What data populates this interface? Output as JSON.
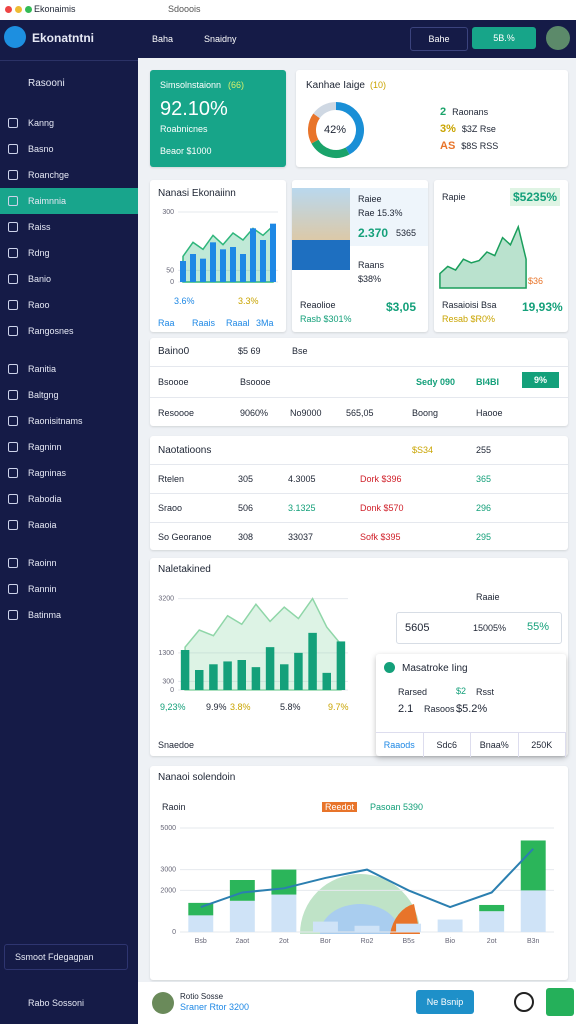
{
  "window": {
    "app": "Ekonaimis",
    "tab": "Sdooois"
  },
  "sidebar": {
    "brand": "Ekonatntni",
    "section": "Rasooni",
    "groups": [
      [
        "Kanng",
        "Basno",
        "Roanchge",
        "Raimnnia",
        "Raiss",
        "Rdng",
        "Banio",
        "Raoo",
        "Rangosnes"
      ],
      [
        "Ranitia",
        "Baltgng",
        "Raonisitnams",
        "Ragninn",
        "Ragninas",
        "Rabodia",
        "Raaoia"
      ],
      [
        "Raoinn",
        "Rannin",
        "Batinma"
      ]
    ],
    "active": [
      0,
      3
    ],
    "footer": "Ssmoot Fdegagpan",
    "user": "Rabo Sossoni"
  },
  "header": {
    "nav": [
      "Baha",
      "Snaidny"
    ],
    "search": "Bahe",
    "badge": "5B.%"
  },
  "kpi": {
    "title": "Simsolnstaionn",
    "tag": "(66)",
    "value": "92.10%",
    "line1": "Roabnicnes",
    "line2": "Beaor $1000"
  },
  "donut": {
    "title": "Kanhae Iaige",
    "tag": "(10)",
    "center": "42%",
    "segments": [
      {
        "value": 42,
        "color": "#1a8fd6"
      },
      {
        "value": 25,
        "color": "#1aa36a"
      },
      {
        "value": 18,
        "color": "#e8742a"
      },
      {
        "value": 15,
        "color": "#cfd8e3"
      }
    ],
    "legend": [
      [
        "2",
        "Raonans"
      ],
      [
        "3%",
        "$3Z Rse"
      ],
      [
        "AS",
        "$8S RSS"
      ]
    ]
  },
  "card_a": {
    "title": "Nanasi Ekonaiinn",
    "footer": [
      "Raa",
      "Raais",
      "Raaal",
      "3Ma"
    ],
    "stats": [
      "3.6%",
      "3.3%"
    ],
    "chart": {
      "ylim": [
        0,
        300
      ],
      "yticks": [
        0,
        50,
        300
      ],
      "series": [
        {
          "type": "area",
          "color": "#2fb67c",
          "values": [
            110,
            170,
            140,
            200,
            160,
            210,
            180,
            230,
            200,
            240
          ]
        },
        {
          "type": "bar",
          "color": "#1e88e5",
          "values": [
            90,
            120,
            100,
            170,
            140,
            150,
            120,
            230,
            180,
            250
          ]
        }
      ]
    }
  },
  "card_b": {
    "label1": "Raiee",
    "label2": "Rae 15.3%",
    "value": "2.370",
    "tag": "5365",
    "label3": "Raans",
    "label4": "$38%",
    "foot1": "Reaolioe",
    "foot2": "Rasb $301%",
    "amount": "$3,05"
  },
  "card_c": {
    "label": "Rapie",
    "value": "$5235%",
    "badge": "$36",
    "foot1": "Rasaioisi Bsa",
    "foot2": "Resab $R0%",
    "amount": "19,93%",
    "chart": {
      "ylim": [
        0,
        100
      ],
      "series": [
        {
          "type": "area",
          "color": "#1a9e5c",
          "values": [
            20,
            30,
            25,
            40,
            35,
            38,
            50,
            45,
            70,
            60,
            85,
            40
          ]
        }
      ]
    }
  },
  "table1": {
    "title": "Baino0",
    "meta": [
      "$5 69",
      "Bse"
    ],
    "rows": [
      [
        "Bsoooe",
        "Bsoooe",
        "",
        "Sedy 090",
        "BI4BI",
        "9%"
      ],
      [
        "Resoooe",
        "9060%",
        "No9000",
        "565,05",
        "Boong",
        "Haooe"
      ]
    ]
  },
  "table2": {
    "title": "Naotatioons",
    "headers": [
      "$S34",
      "255"
    ],
    "rows": [
      [
        "Rtelen",
        "305",
        "4.3005",
        "Dork $396",
        "365"
      ],
      [
        "Sraoo",
        "506",
        "3.1325",
        "Donk $570",
        "296"
      ],
      [
        "So Georanoe",
        "308",
        "33037",
        "Sofk $395",
        "295"
      ]
    ]
  },
  "mid": {
    "title": "Naletakined",
    "stats": [
      "9,23%",
      "9.9%",
      "3.8%",
      "5.8%",
      "9.7%"
    ],
    "corner": "Raaie",
    "box": [
      "5605",
      "15005%",
      "55%"
    ],
    "pop": {
      "title": "Masatroke Iing",
      "rows": [
        [
          "Rarsed",
          "$2",
          "Rsst"
        ],
        [
          "2.1",
          "Rasoos",
          "$5.2%"
        ]
      ],
      "tabs": [
        "Raaods",
        "Sdc6",
        "Bnaa%",
        "250K"
      ]
    },
    "foot": "Snaedoe",
    "chart": {
      "ylim": [
        0,
        3500
      ],
      "yticks": [
        0,
        300,
        1300,
        3200
      ],
      "series": [
        {
          "type": "area",
          "color": "#8fd6a8",
          "values": [
            1500,
            2100,
            1900,
            2600,
            2300,
            3000,
            2400,
            2900,
            2500,
            3200,
            2200,
            1600
          ]
        },
        {
          "type": "bar",
          "color": "#14a07a",
          "values": [
            1400,
            700,
            900,
            1000,
            1050,
            800,
            1500,
            900,
            1300,
            2000,
            600,
            1700
          ]
        }
      ]
    }
  },
  "bottom": {
    "title": "Nanaoi solendoin",
    "label": "Raoin",
    "legend": [
      "Reedot",
      "Pasoan 5390"
    ],
    "chart": {
      "ylim": [
        0,
        5000
      ],
      "yticks": [
        0,
        2000,
        3000,
        5000
      ],
      "categories": [
        "Bsb",
        "2aot",
        "2ot",
        "Bor",
        "Ro2",
        "B5s",
        "Bio",
        "2ot",
        "B3n"
      ],
      "series": [
        {
          "type": "bar",
          "color": "#cfe3f7",
          "values": [
            800,
            1500,
            1800,
            500,
            300,
            400,
            600,
            1000,
            2000
          ]
        },
        {
          "type": "bar",
          "stack": true,
          "color": "#2bb55a",
          "values": [
            600,
            1000,
            1200,
            0,
            0,
            0,
            0,
            300,
            2400
          ]
        },
        {
          "type": "line",
          "color": "#2b7fb0",
          "values": [
            1200,
            1900,
            2100,
            2600,
            3000,
            2000,
            1200,
            1900,
            4000
          ]
        }
      ]
    }
  },
  "footer": {
    "user": "Rotio Sosse",
    "sub": "Sraner Rtor 3200",
    "button": "Ne Bsnip"
  }
}
